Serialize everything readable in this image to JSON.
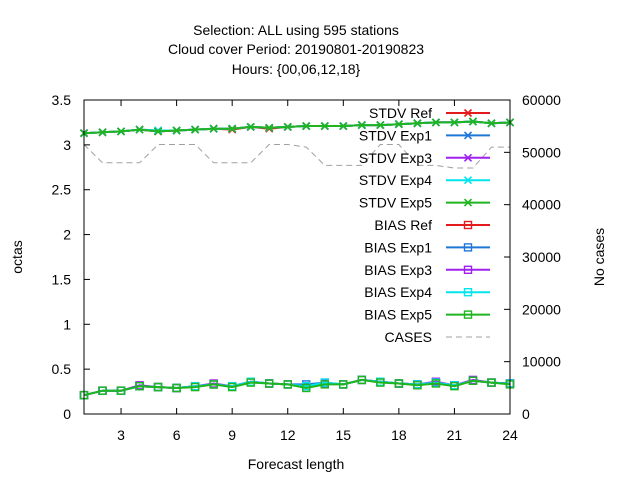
{
  "chart_data": {
    "type": "line",
    "title_lines": [
      "Selection: ALL using   595 stations",
      "Cloud cover   Period: 20190801-20190823",
      "Hours: {00,06,12,18}"
    ],
    "xlabel": "Forecast length",
    "ylabel": "octas",
    "y2label": "No cases",
    "xlim": [
      1,
      24
    ],
    "ylim": [
      0,
      3.5
    ],
    "y2lim": [
      0,
      60000
    ],
    "xticks": [
      3,
      6,
      9,
      12,
      15,
      18,
      21,
      24
    ],
    "yticks": [
      "0",
      "0.5",
      "1",
      "1.5",
      "2",
      "2.5",
      "3",
      "3.5"
    ],
    "y2ticks": [
      "0",
      "10000",
      "20000",
      "30000",
      "40000",
      "50000",
      "60000"
    ],
    "legend_position": "top-right",
    "x": [
      1,
      2,
      3,
      4,
      5,
      6,
      7,
      8,
      9,
      10,
      11,
      12,
      13,
      14,
      15,
      16,
      17,
      18,
      19,
      20,
      21,
      22,
      23,
      24
    ],
    "series": [
      {
        "name": "STDV Ref",
        "color": "#e41a1c",
        "marker": "x",
        "axis": "left",
        "values": [
          3.13,
          3.14,
          3.15,
          3.17,
          3.15,
          3.16,
          3.17,
          3.18,
          3.17,
          3.2,
          3.18,
          3.2,
          3.21,
          3.21,
          3.21,
          3.22,
          3.22,
          3.23,
          3.24,
          3.25,
          3.25,
          3.26,
          3.24,
          3.25
        ]
      },
      {
        "name": "STDV Exp1",
        "color": "#1f78d8",
        "marker": "x",
        "axis": "left",
        "values": [
          3.13,
          3.14,
          3.15,
          3.17,
          3.16,
          3.16,
          3.17,
          3.18,
          3.18,
          3.2,
          3.19,
          3.2,
          3.21,
          3.21,
          3.21,
          3.22,
          3.22,
          3.23,
          3.24,
          3.25,
          3.25,
          3.26,
          3.24,
          3.25
        ]
      },
      {
        "name": "STDV Exp3",
        "color": "#a020f0",
        "marker": "x",
        "axis": "left",
        "values": [
          3.13,
          3.14,
          3.15,
          3.17,
          3.15,
          3.16,
          3.17,
          3.18,
          3.18,
          3.2,
          3.19,
          3.2,
          3.21,
          3.21,
          3.21,
          3.22,
          3.22,
          3.23,
          3.24,
          3.25,
          3.25,
          3.26,
          3.24,
          3.25
        ]
      },
      {
        "name": "STDV Exp4",
        "color": "#00e5ee",
        "marker": "x",
        "axis": "left",
        "values": [
          3.13,
          3.14,
          3.15,
          3.17,
          3.16,
          3.16,
          3.17,
          3.18,
          3.18,
          3.2,
          3.19,
          3.2,
          3.21,
          3.21,
          3.21,
          3.22,
          3.22,
          3.23,
          3.24,
          3.25,
          3.25,
          3.26,
          3.24,
          3.25
        ]
      },
      {
        "name": "STDV Exp5",
        "color": "#1fb51f",
        "marker": "x",
        "axis": "left",
        "values": [
          3.13,
          3.14,
          3.15,
          3.17,
          3.15,
          3.16,
          3.17,
          3.18,
          3.18,
          3.2,
          3.19,
          3.2,
          3.21,
          3.21,
          3.21,
          3.22,
          3.22,
          3.23,
          3.24,
          3.25,
          3.25,
          3.26,
          3.24,
          3.25
        ]
      },
      {
        "name": "BIAS Ref",
        "color": "#e41a1c",
        "marker": "square",
        "axis": "left",
        "values": [
          0.21,
          0.26,
          0.26,
          0.31,
          0.3,
          0.29,
          0.31,
          0.33,
          0.31,
          0.36,
          0.34,
          0.33,
          0.31,
          0.34,
          0.33,
          0.38,
          0.36,
          0.34,
          0.33,
          0.35,
          0.32,
          0.37,
          0.35,
          0.34
        ]
      },
      {
        "name": "BIAS Exp1",
        "color": "#1f78d8",
        "marker": "square",
        "axis": "left",
        "values": [
          0.21,
          0.26,
          0.26,
          0.31,
          0.3,
          0.29,
          0.31,
          0.33,
          0.31,
          0.36,
          0.34,
          0.33,
          0.33,
          0.35,
          0.33,
          0.38,
          0.36,
          0.34,
          0.33,
          0.35,
          0.32,
          0.37,
          0.35,
          0.34
        ]
      },
      {
        "name": "BIAS Exp3",
        "color": "#a020f0",
        "marker": "square",
        "axis": "left",
        "values": [
          0.21,
          0.26,
          0.26,
          0.32,
          0.3,
          0.29,
          0.31,
          0.34,
          0.31,
          0.36,
          0.34,
          0.33,
          0.31,
          0.34,
          0.33,
          0.38,
          0.36,
          0.34,
          0.33,
          0.36,
          0.32,
          0.38,
          0.35,
          0.34
        ]
      },
      {
        "name": "BIAS Exp4",
        "color": "#00e5ee",
        "marker": "square",
        "axis": "left",
        "values": [
          0.21,
          0.26,
          0.26,
          0.31,
          0.3,
          0.29,
          0.31,
          0.33,
          0.31,
          0.36,
          0.34,
          0.33,
          0.31,
          0.35,
          0.33,
          0.38,
          0.36,
          0.34,
          0.33,
          0.35,
          0.32,
          0.37,
          0.35,
          0.34
        ]
      },
      {
        "name": "BIAS Exp5",
        "color": "#1fb51f",
        "marker": "square",
        "axis": "left",
        "values": [
          0.21,
          0.26,
          0.26,
          0.31,
          0.3,
          0.29,
          0.3,
          0.33,
          0.3,
          0.35,
          0.34,
          0.33,
          0.29,
          0.33,
          0.33,
          0.38,
          0.35,
          0.34,
          0.32,
          0.34,
          0.31,
          0.37,
          0.35,
          0.33
        ]
      },
      {
        "name": "CASES",
        "color": "#a0a0a0",
        "marker": "none",
        "dash": true,
        "axis": "right",
        "values": [
          51500,
          48000,
          48000,
          48000,
          51500,
          51500,
          51500,
          48000,
          48000,
          48000,
          51500,
          51500,
          51000,
          47500,
          47500,
          47500,
          51500,
          51500,
          47500,
          47500,
          47000,
          47000,
          51000,
          51000
        ]
      }
    ]
  }
}
